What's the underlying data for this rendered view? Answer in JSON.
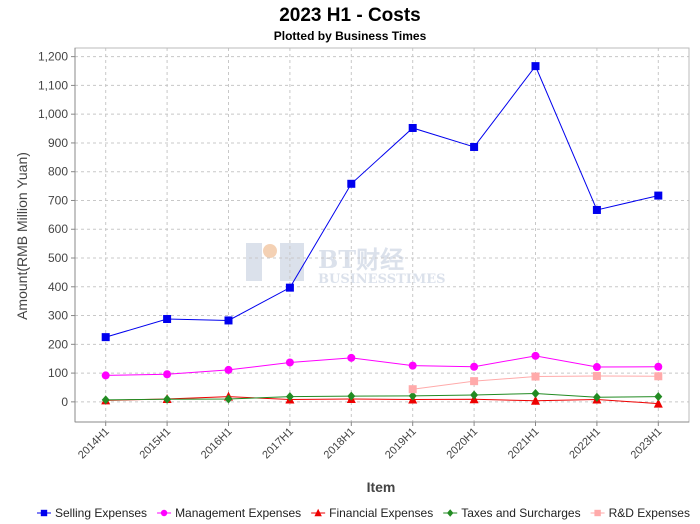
{
  "chart_data": {
    "type": "line",
    "title": "2023 H1 - Costs",
    "subtitle": "Plotted by Business Times",
    "xlabel": "Item",
    "ylabel": "Amount(RMB Million Yuan)",
    "categories": [
      "2014H1",
      "2015H1",
      "2016H1",
      "2017H1",
      "2018H1",
      "2019H1",
      "2020H1",
      "2021H1",
      "2022H1",
      "2023H1"
    ],
    "ylim": [
      -70,
      1230
    ],
    "yticks": [
      0,
      100,
      200,
      300,
      400,
      500,
      600,
      700,
      800,
      900,
      1000,
      1100,
      1200
    ],
    "ytick_labels": [
      "0",
      "100",
      "200",
      "300",
      "400",
      "500",
      "600",
      "700",
      "800",
      "900",
      "1,000",
      "1,100",
      "1,200"
    ],
    "grid": true,
    "legend_position": "bottom",
    "series": [
      {
        "name": "Selling Expenses",
        "color": "#0000ee",
        "marker": "square",
        "values": [
          225,
          288,
          283,
          397,
          758,
          952,
          886,
          1167,
          667,
          717
        ]
      },
      {
        "name": "Management Expenses",
        "color": "#ff00ff",
        "marker": "circle",
        "values": [
          92,
          96,
          111,
          137,
          153,
          126,
          122,
          160,
          121,
          122
        ]
      },
      {
        "name": "Financial Expenses",
        "color": "#ee0000",
        "marker": "triangle",
        "values": [
          5,
          10,
          18,
          8,
          10,
          8,
          9,
          4,
          8,
          -6
        ]
      },
      {
        "name": "Taxes and Surcharges",
        "color": "#228b22",
        "marker": "diamond",
        "values": [
          7,
          9,
          10,
          18,
          20,
          21,
          24,
          29,
          16,
          18
        ]
      },
      {
        "name": "R&D Expenses",
        "color": "#ffaaaa",
        "marker": "square",
        "values": [
          null,
          null,
          null,
          null,
          null,
          44,
          72,
          88,
          90,
          89
        ]
      }
    ]
  },
  "watermark": {
    "cn": "BT财经",
    "en": "BUSINESSTIMES"
  }
}
